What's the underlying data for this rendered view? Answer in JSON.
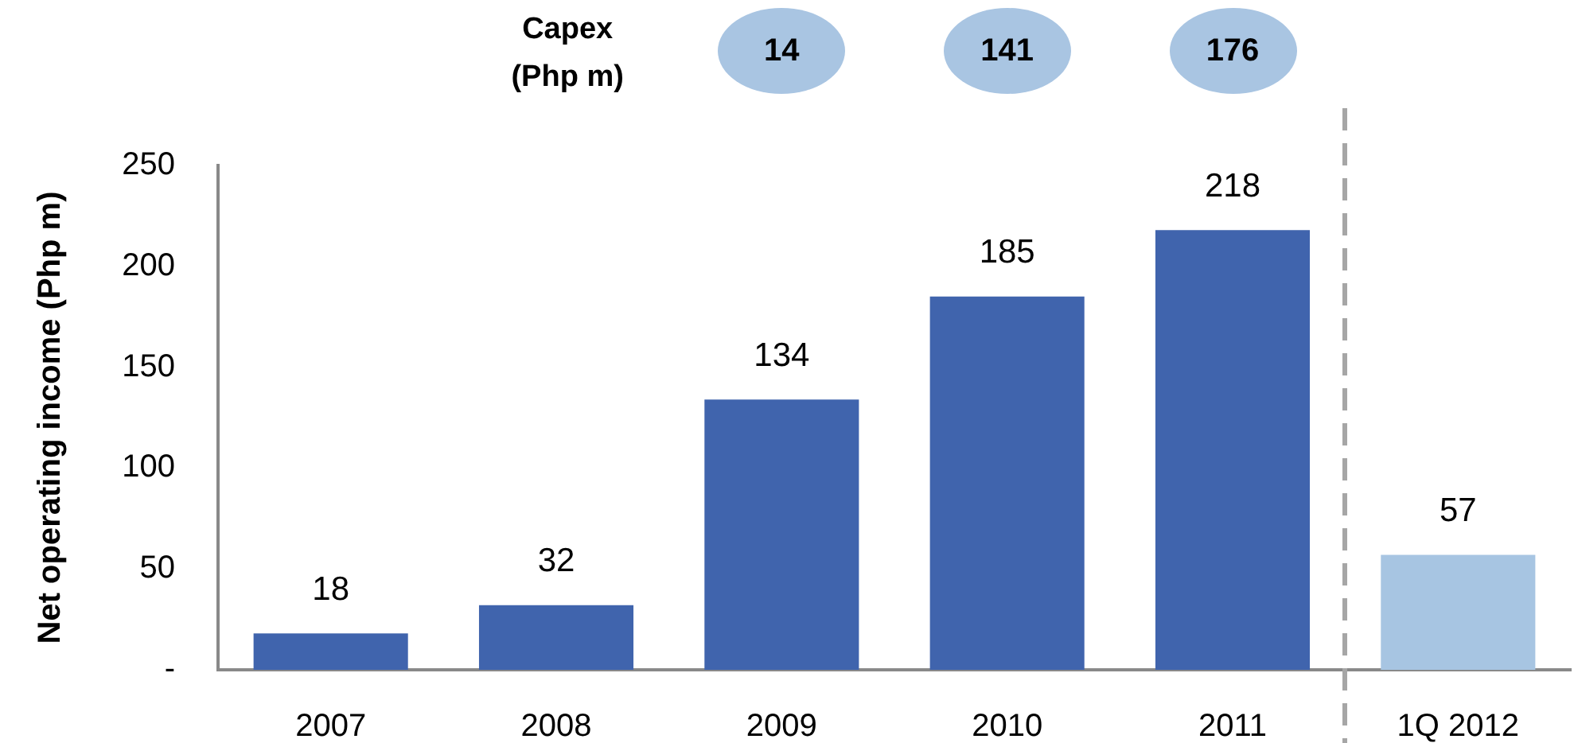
{
  "chart_data": {
    "type": "bar",
    "ylabel": "Net operating income (Php m)",
    "categories": [
      "2007",
      "2008",
      "2009",
      "2010",
      "2011",
      "1Q 2012"
    ],
    "values": [
      18,
      32,
      134,
      185,
      218,
      57
    ],
    "colors": [
      "#4064ad",
      "#4064ad",
      "#4064ad",
      "#4064ad",
      "#4064ad",
      "#a7c5e2"
    ],
    "ylim": [
      0,
      250
    ],
    "yticks": [
      {
        "value": 0,
        "label": "-"
      },
      50,
      100,
      150,
      200,
      250
    ],
    "data_labels": true,
    "grid": false,
    "legend": false,
    "annotations": [
      "Capex (Php m)",
      "14",
      "141",
      "176"
    ]
  }
}
